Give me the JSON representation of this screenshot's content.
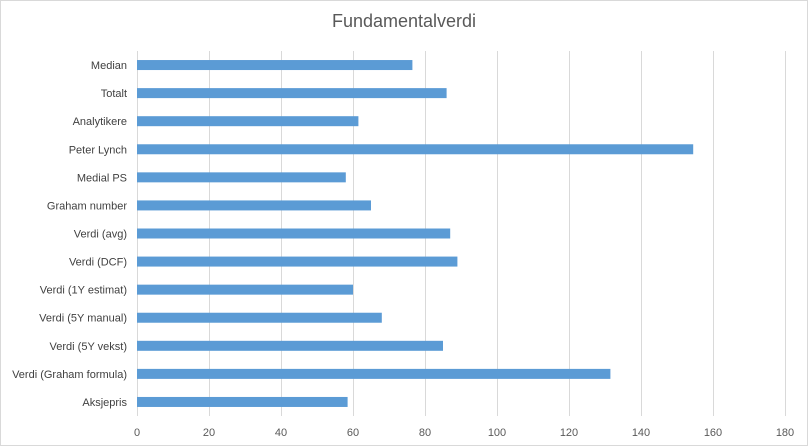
{
  "chart_data": {
    "type": "bar",
    "orientation": "horizontal",
    "title": "Fundamentalverdi",
    "categories": [
      "Median",
      "Totalt",
      "Analytikere",
      "Peter Lynch",
      "Medial PS",
      "Graham number",
      "Verdi (avg)",
      "Verdi (DCF)",
      "Verdi (1Y estimat)",
      "Verdi (5Y manual)",
      "Verdi (5Y vekst)",
      "Verdi (Graham formula)",
      "Aksjepris"
    ],
    "values": [
      76.5,
      86,
      61.5,
      154.5,
      58,
      65,
      87,
      89,
      60,
      68,
      85,
      131.5,
      58.5
    ],
    "xlim": [
      0,
      180
    ],
    "xticks": [
      0,
      20,
      40,
      60,
      80,
      100,
      120,
      140,
      160,
      180
    ],
    "grid": "vertical",
    "legend": "none",
    "bar_color": "#5b9bd5",
    "grid_color": "#d9d9d9"
  }
}
